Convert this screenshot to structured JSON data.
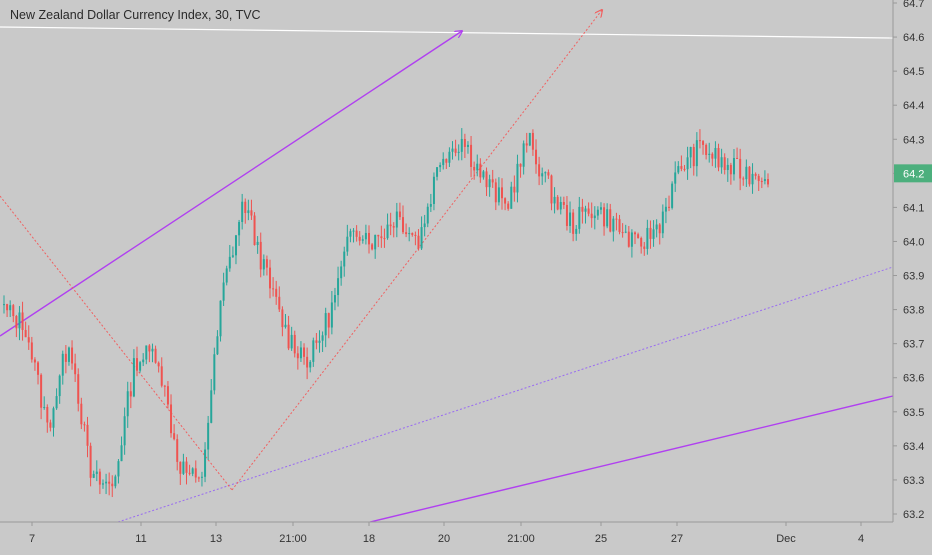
{
  "chart_data": {
    "type": "candlestick",
    "title": "New Zealand Dollar Currency Index, 30, TVC",
    "y_axis": {
      "side": "right",
      "ticks": [
        63.2,
        63.3,
        63.4,
        63.5,
        63.6,
        63.7,
        63.8,
        63.9,
        64.0,
        64.1,
        64.2,
        64.3,
        64.4,
        64.5,
        64.6,
        64.7
      ],
      "tick_labels": [
        "63.2",
        "63.3",
        "63.4",
        "63.5",
        "63.6",
        "63.7",
        "63.8",
        "63.9",
        "64.0",
        "64.1",
        "64.2",
        "64.3",
        "64.4",
        "64.5",
        "64.6",
        "64.7"
      ],
      "range": [
        63.17,
        64.73
      ]
    },
    "x_axis": {
      "tick_labels": [
        "7",
        "11",
        "13",
        "21:00",
        "18",
        "20",
        "21:00",
        "25",
        "27",
        "Dec",
        "4"
      ]
    },
    "last_price": {
      "value": 64.2,
      "label": "64.2"
    },
    "grid": false,
    "colors": {
      "background": "#c9c9c9",
      "axis_line": "#999999",
      "axis_text": "#333333",
      "up": "#26a69a",
      "down": "#ef5350",
      "line_purple": "#b040f0",
      "dotted_purple": "#9a6ef0",
      "dotted_red": "#f06060",
      "horizontal_line": "#ffffff",
      "price_label_bg": "#4caf7d"
    },
    "series_anchors": [
      {
        "x": "7",
        "close": 63.8
      },
      {
        "x": "7",
        "close": 63.75
      },
      {
        "x": "7",
        "close": 63.45
      },
      {
        "x": "7",
        "close": 63.72
      },
      {
        "x": "11",
        "close": 63.3
      },
      {
        "x": "11",
        "close": 63.28
      },
      {
        "x": "11",
        "close": 63.65
      },
      {
        "x": "11",
        "close": 63.68
      },
      {
        "x": "13",
        "close": 63.35
      },
      {
        "x": "13",
        "close": 63.28
      },
      {
        "x": "13",
        "close": 63.85
      },
      {
        "x": "13",
        "close": 64.12
      },
      {
        "x": "21:00",
        "close": 63.9
      },
      {
        "x": "21:00",
        "close": 63.72
      },
      {
        "x": "21:00",
        "close": 63.65
      },
      {
        "x": "21:00",
        "close": 63.8
      },
      {
        "x": "18",
        "close": 64.05
      },
      {
        "x": "18",
        "close": 64.0
      },
      {
        "x": "18",
        "close": 64.08
      },
      {
        "x": "18",
        "close": 64.0
      },
      {
        "x": "20",
        "close": 64.25
      },
      {
        "x": "20",
        "close": 64.3
      },
      {
        "x": "20",
        "close": 64.18
      },
      {
        "x": "20",
        "close": 64.1
      },
      {
        "x": "21:00",
        "close": 64.3
      },
      {
        "x": "21:00",
        "close": 64.15
      },
      {
        "x": "21:00",
        "close": 64.05
      },
      {
        "x": "25",
        "close": 64.1
      },
      {
        "x": "25",
        "close": 64.05
      },
      {
        "x": "25",
        "close": 63.98
      },
      {
        "x": "25",
        "close": 64.05
      },
      {
        "x": "27",
        "close": 64.22
      },
      {
        "x": "27",
        "close": 64.28
      },
      {
        "x": "27",
        "close": 64.22
      },
      {
        "x": "27",
        "close": 64.2
      },
      {
        "x": "Dec",
        "close": 64.2
      }
    ]
  }
}
